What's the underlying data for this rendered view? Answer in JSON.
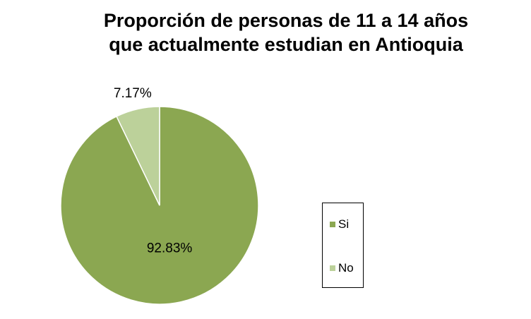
{
  "chart_data": {
    "type": "pie",
    "title_lines": [
      "Proporción de personas de 11 a 14 años",
      "que actualmente estudian en Antioquia"
    ],
    "categories": [
      "Si",
      "No"
    ],
    "values": [
      92.83,
      7.17
    ],
    "data_labels": [
      "92.83%",
      "7.17%"
    ],
    "colors": [
      "#8BA751",
      "#BCD19A"
    ],
    "legend": {
      "placement": "right",
      "items": [
        "Si",
        "No"
      ]
    }
  }
}
